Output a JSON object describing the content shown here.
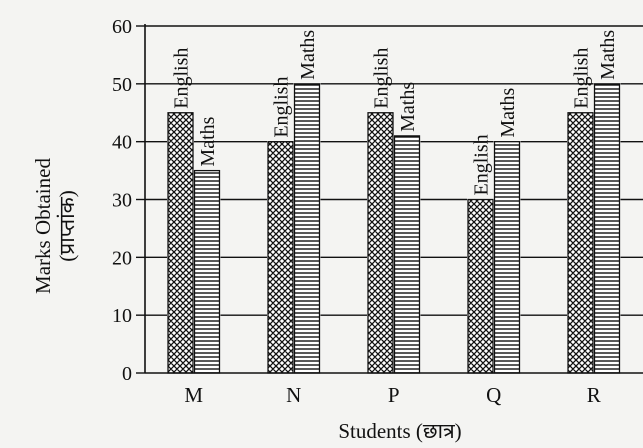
{
  "chart_data": {
    "type": "bar",
    "categories": [
      "M",
      "N",
      "P",
      "Q",
      "R"
    ],
    "series": [
      {
        "name": "English",
        "values": [
          45,
          40,
          45,
          30,
          45
        ]
      },
      {
        "name": "Maths",
        "values": [
          35,
          50,
          41,
          40,
          50
        ]
      }
    ],
    "xlabel": "Students (छात्र)",
    "ylabel": "Marks Obtained",
    "ylabel_sub": "(प्राप्तांक)",
    "ylim": [
      0,
      60
    ],
    "yticks": [
      0,
      10,
      20,
      30,
      40,
      50,
      60
    ],
    "grid": true,
    "legend": "none",
    "bar_labels": "series name above each bar",
    "patterns": {
      "English": "cross-hatch",
      "Maths": "horizontal-lines"
    }
  }
}
